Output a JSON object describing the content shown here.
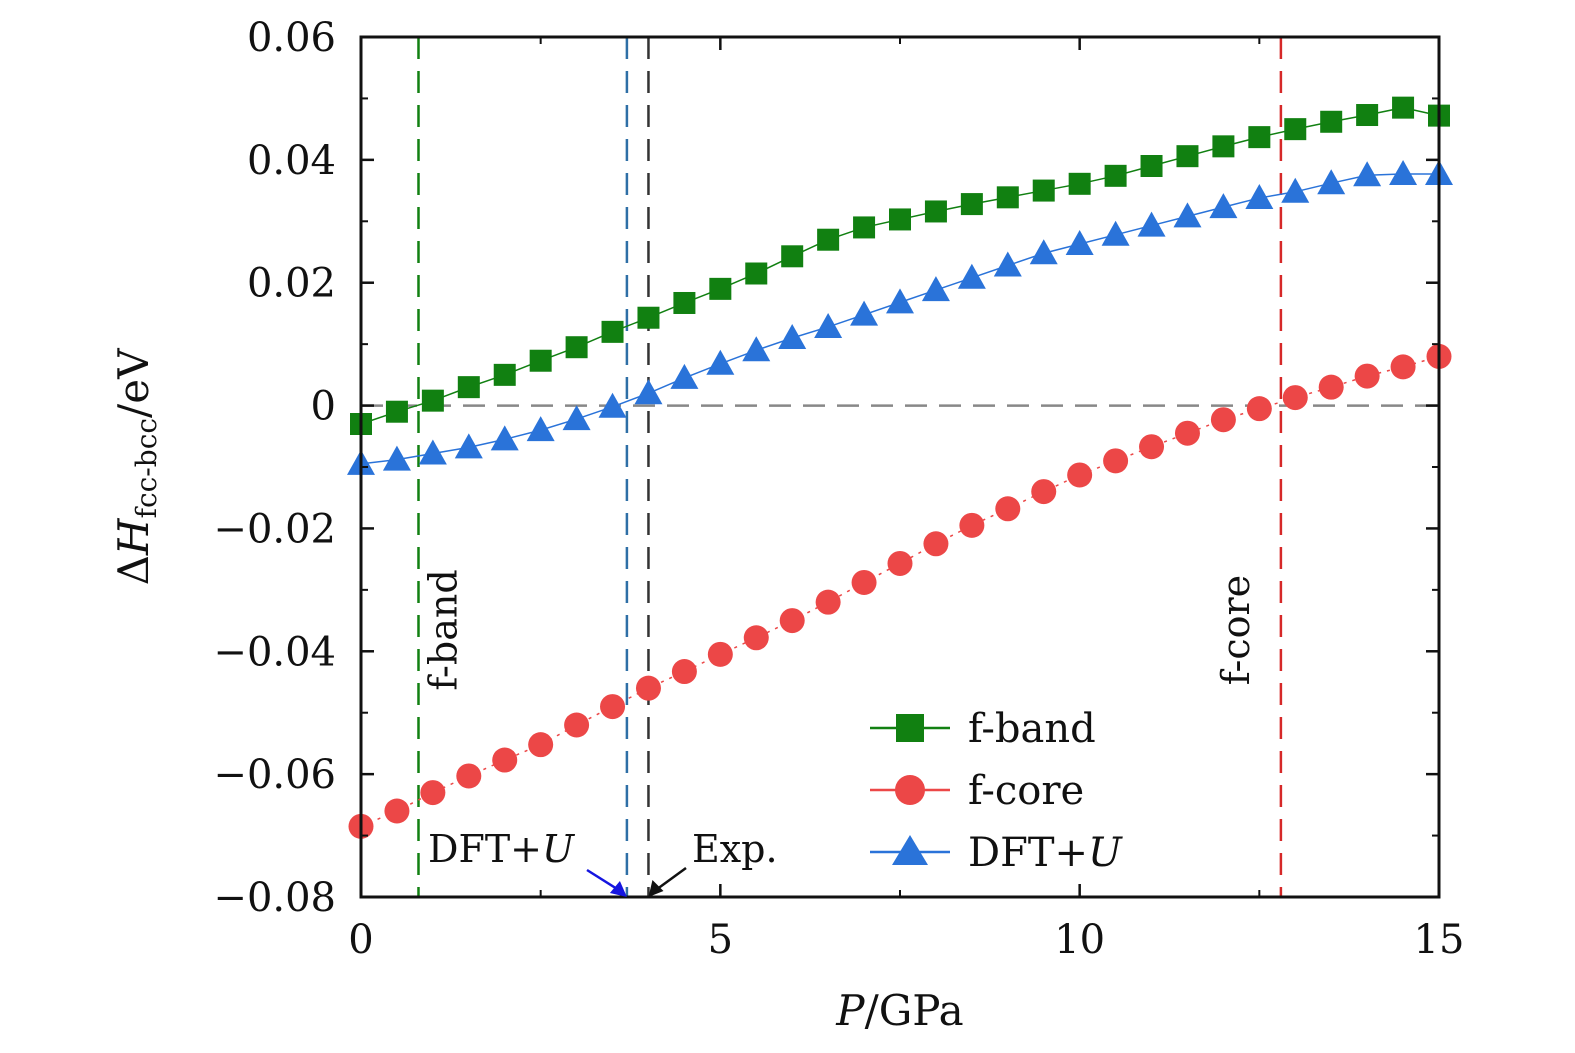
{
  "chart_data": {
    "type": "scatter",
    "title": "",
    "xlabel": {
      "var": "P",
      "rest": "/GPa"
    },
    "ylabel": {
      "prefix": "Δ",
      "var": "H",
      "sub": "fcc-bcc",
      "rest": "/eV"
    },
    "xlim": [
      0,
      15
    ],
    "ylim": [
      -0.08,
      0.06
    ],
    "xticks": [
      0,
      5,
      10,
      15
    ],
    "xtick_labels": [
      "0",
      "5",
      "10",
      "15"
    ],
    "yticks": [
      0.06,
      0.04,
      0.02,
      0,
      -0.02,
      -0.04,
      -0.06,
      -0.08
    ],
    "ytick_labels": [
      "0.06",
      "0.04",
      "0.02",
      "0",
      "−0.02",
      "−0.04",
      "−0.06",
      "−0.08"
    ],
    "series": [
      {
        "name": "f-band",
        "label": "f-band",
        "marker": "square",
        "color": "#118011",
        "x": [
          0,
          0.5,
          1,
          1.5,
          2,
          2.5,
          3,
          3.5,
          4,
          4.5,
          5,
          5.5,
          6,
          6.5,
          7,
          7.5,
          8,
          8.5,
          9,
          9.5,
          10,
          10.5,
          11,
          11.5,
          12,
          12.5,
          13,
          13.5,
          14,
          14.5,
          15
        ],
        "y": [
          -0.003,
          -0.001,
          0.0008,
          0.003,
          0.005,
          0.0073,
          0.0095,
          0.012,
          0.0143,
          0.0167,
          0.019,
          0.0215,
          0.0243,
          0.027,
          0.029,
          0.0303,
          0.0316,
          0.0328,
          0.0339,
          0.035,
          0.0361,
          0.0374,
          0.039,
          0.0406,
          0.0422,
          0.0437,
          0.045,
          0.0462,
          0.0473,
          0.0485,
          0.0472
        ]
      },
      {
        "name": "f-core",
        "label": "f-core",
        "marker": "circle",
        "color": "#ec4747",
        "x": [
          0,
          0.5,
          1,
          1.5,
          2,
          2.5,
          3,
          3.5,
          4,
          4.5,
          5,
          5.5,
          6,
          6.5,
          7,
          7.5,
          8,
          8.5,
          9,
          9.5,
          10,
          10.5,
          11,
          11.5,
          12,
          12.5,
          13,
          13.5,
          14,
          14.5,
          15
        ],
        "y": [
          -0.0685,
          -0.066,
          -0.063,
          -0.0603,
          -0.0577,
          -0.0552,
          -0.052,
          -0.049,
          -0.046,
          -0.0433,
          -0.0405,
          -0.0378,
          -0.035,
          -0.032,
          -0.0288,
          -0.0257,
          -0.0225,
          -0.0195,
          -0.0168,
          -0.014,
          -0.0113,
          -0.009,
          -0.0067,
          -0.0045,
          -0.0023,
          -0.0005,
          0.0013,
          0.003,
          0.0048,
          0.0063,
          0.008
        ]
      },
      {
        "name": "DFT+U",
        "label_main": "DFT+",
        "label_var": "U",
        "marker": "triangle",
        "color": "#2a73d9",
        "x": [
          0,
          0.5,
          1,
          1.5,
          2,
          2.5,
          3,
          3.5,
          4,
          4.5,
          5,
          5.5,
          6,
          6.5,
          7,
          7.5,
          8,
          8.5,
          9,
          9.5,
          10,
          10.5,
          11,
          11.5,
          12,
          12.5,
          13,
          13.5,
          14,
          14.5,
          15
        ],
        "y": [
          -0.0095,
          -0.0088,
          -0.0078,
          -0.0068,
          -0.0055,
          -0.004,
          -0.0022,
          -0.0002,
          0.002,
          0.0045,
          0.0068,
          0.009,
          0.011,
          0.0128,
          0.0148,
          0.0168,
          0.0188,
          0.0208,
          0.0228,
          0.0248,
          0.0263,
          0.0278,
          0.0293,
          0.0308,
          0.0323,
          0.0338,
          0.0348,
          0.0362,
          0.0375,
          0.0377,
          0.0377
        ]
      }
    ],
    "reference_lines": [
      {
        "name": "zero-line",
        "orientation": "horizontal",
        "value": 0,
        "color": "#888888"
      },
      {
        "name": "f-band-transition",
        "orientation": "vertical",
        "value": 0.8,
        "color": "#118011",
        "label": "f-band"
      },
      {
        "name": "dft-u-transition",
        "orientation": "vertical",
        "value": 3.7,
        "color": "#2e6fa6"
      },
      {
        "name": "experimental-transition",
        "orientation": "vertical",
        "value": 4.0,
        "color": "#333333"
      },
      {
        "name": "f-core-transition",
        "orientation": "vertical",
        "value": 12.8,
        "color": "#d62828",
        "label": "f-core"
      }
    ],
    "annotations": {
      "dft_u": {
        "main": "DFT+",
        "var": "U",
        "arrow_color": "#1515e0",
        "points_to_x": 3.7
      },
      "exp": {
        "text": "Exp.",
        "arrow_color": "#111111",
        "points_to_x": 4.0
      }
    },
    "legend_position": "lower-right"
  }
}
